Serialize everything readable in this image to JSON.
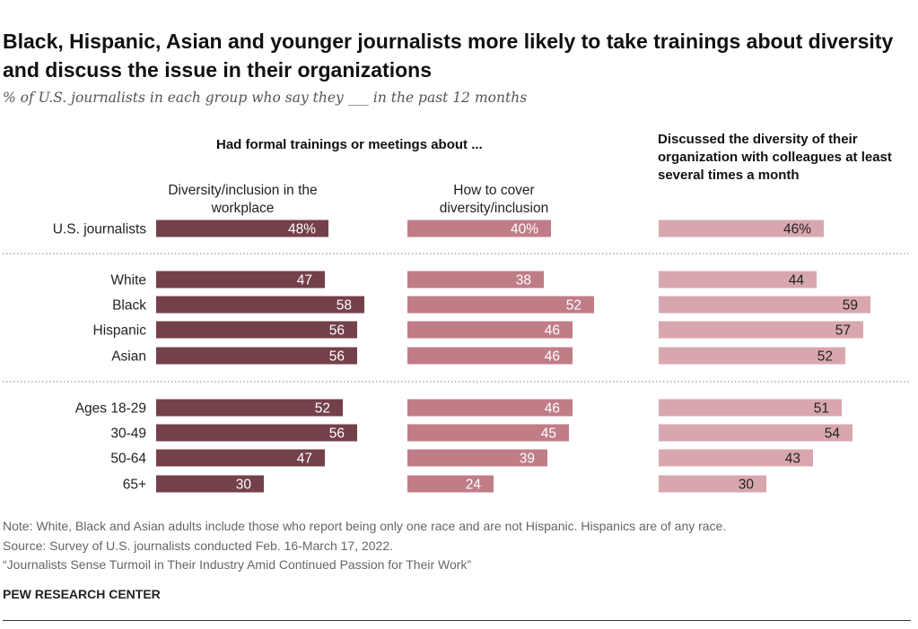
{
  "title": "Black, Hispanic, Asian and younger journalists more likely to take trainings about diversity and discuss the issue in their organizations",
  "subtitle": "% of U.S. journalists in each group who say they ___ in the past 12 months",
  "group_heading": "Had formal trainings or meetings about ...",
  "third_heading": "Discussed the diversity of their organization with colleagues at least several times a month",
  "column_headers": [
    "Diversity/inclusion in the workplace",
    "How to cover diversity/inclusion",
    ""
  ],
  "colors": {
    "col1": "#74404a",
    "col2": "#c07d87",
    "col3": "#d8a7ae",
    "dotted": "#999999"
  },
  "chart_data": {
    "type": "bar",
    "orientation": "horizontal",
    "categories": [
      "U.S. journalists",
      "White",
      "Black",
      "Hispanic",
      "Asian",
      "Ages 18-29",
      "30-49",
      "50-64",
      "65+"
    ],
    "category_groups": [
      [
        "U.S. journalists"
      ],
      [
        "White",
        "Black",
        "Hispanic",
        "Asian"
      ],
      [
        "Ages 18-29",
        "30-49",
        "50-64",
        "65+"
      ]
    ],
    "series": [
      {
        "name": "Diversity/inclusion in the workplace",
        "values": [
          48,
          47,
          58,
          56,
          56,
          52,
          56,
          47,
          30
        ],
        "labels": [
          "48%",
          "47",
          "58",
          "56",
          "56",
          "52",
          "56",
          "47",
          "30"
        ]
      },
      {
        "name": "How to cover diversity/inclusion",
        "values": [
          40,
          38,
          52,
          46,
          46,
          46,
          45,
          39,
          24
        ],
        "labels": [
          "40%",
          "38",
          "52",
          "46",
          "46",
          "46",
          "45",
          "39",
          "24"
        ]
      },
      {
        "name": "Discussed the diversity of their organization with colleagues at least several times a month",
        "values": [
          46,
          44,
          59,
          57,
          52,
          51,
          54,
          43,
          30
        ],
        "labels": [
          "46%",
          "44",
          "59",
          "57",
          "52",
          "51",
          "54",
          "43",
          "30"
        ]
      }
    ],
    "unit": "%",
    "xlim": [
      0,
      100
    ]
  },
  "notes": [
    "Note: White, Black and Asian adults include those who report being only one race and are not Hispanic. Hispanics are of any race.",
    "Source: Survey of U.S. journalists conducted Feb. 16-March 17, 2022.",
    "“Journalists Sense Turmoil in Their Industry Amid Continued Passion for Their Work”"
  ],
  "logo": "PEW RESEARCH CENTER"
}
